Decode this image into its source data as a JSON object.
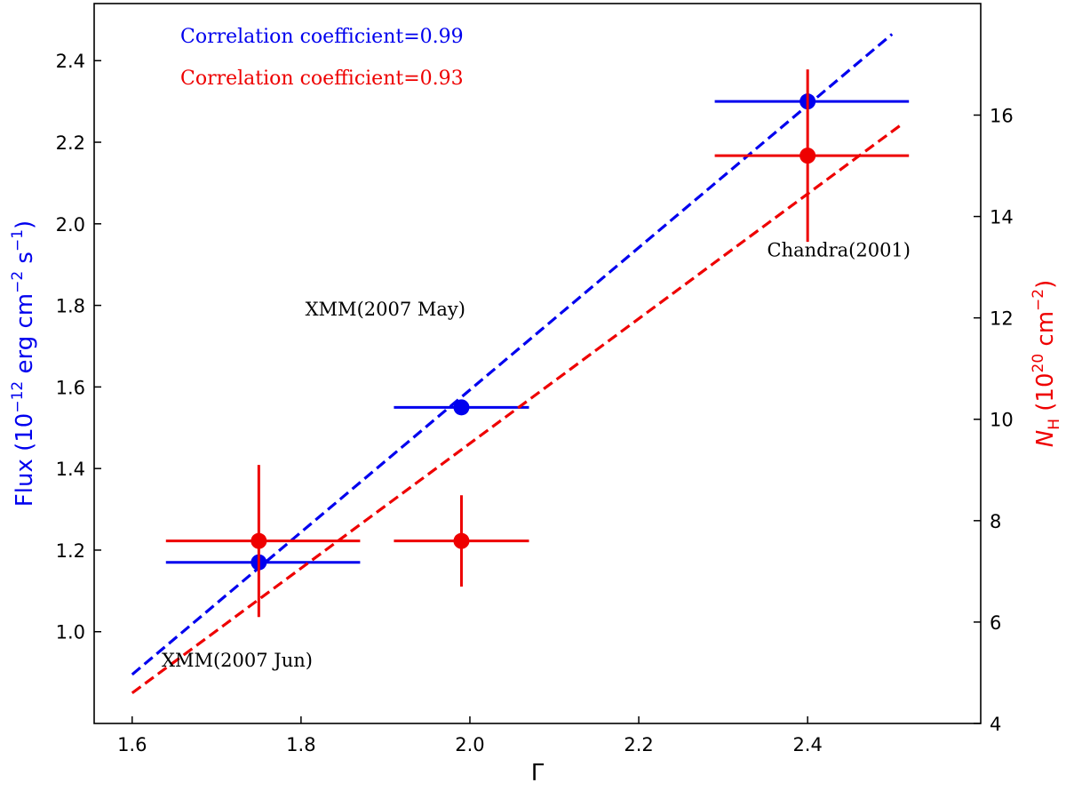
{
  "chart_data": {
    "type": "scatter",
    "xlabel": "Γ",
    "ylabel_left": {
      "prefix": "Flux (10",
      "exp1": "−12",
      "mid": " erg cm",
      "exp2": "−2",
      "mid2": " s",
      "exp3": "−1",
      "suffix": ")"
    },
    "ylabel_right": {
      "prefix": "N",
      "sub": "H",
      "mid": " (10",
      "exp1": "20",
      "mid2": " cm",
      "exp2": "−2",
      "suffix": ")"
    },
    "xlim": [
      1.555,
      2.605
    ],
    "ylim_left": [
      0.775,
      2.54
    ],
    "ylim_right": [
      4.0,
      18.2
    ],
    "x_ticks": [
      1.6,
      1.8,
      2.0,
      2.2,
      2.4
    ],
    "x_tick_labels": [
      "1.6",
      "1.8",
      "2.0",
      "2.2",
      "2.4"
    ],
    "y_left_ticks": [
      1.0,
      1.2,
      1.4,
      1.6,
      1.8,
      2.0,
      2.2,
      2.4
    ],
    "y_left_tick_labels": [
      "1.0",
      "1.2",
      "1.4",
      "1.6",
      "1.8",
      "2.0",
      "2.2",
      "2.4"
    ],
    "y_right_ticks": [
      4,
      6,
      8,
      10,
      12,
      14,
      16
    ],
    "y_right_tick_labels": [
      "4",
      "6",
      "8",
      "10",
      "12",
      "14",
      "16"
    ],
    "series": [
      {
        "name": "Flux",
        "axis": "left",
        "color": "#0000ee",
        "points": [
          {
            "x": 1.75,
            "y": 1.17,
            "xerr": [
              0.11,
              0.12
            ],
            "yerr": [
              0,
              0
            ]
          },
          {
            "x": 1.99,
            "y": 1.55,
            "xerr": [
              0.08,
              0.08
            ],
            "yerr": [
              0,
              0
            ]
          },
          {
            "x": 2.4,
            "y": 2.3,
            "xerr": [
              0.11,
              0.12
            ],
            "yerr": [
              0,
              0
            ]
          }
        ],
        "fit": {
          "x": [
            1.6,
            2.5
          ],
          "y": [
            0.895,
            2.465
          ]
        },
        "annotation": "Correlation coefficient=0.99"
      },
      {
        "name": "NH",
        "axis": "right",
        "color": "#ee0000",
        "points": [
          {
            "x": 1.75,
            "y": 7.6,
            "xerr": [
              0.11,
              0.12
            ],
            "yerr": [
              1.5,
              1.5
            ]
          },
          {
            "x": 1.99,
            "y": 7.6,
            "xerr": [
              0.08,
              0.08
            ],
            "yerr": [
              0.9,
              0.9
            ]
          },
          {
            "x": 2.4,
            "y": 15.2,
            "xerr": [
              0.11,
              0.12
            ],
            "yerr": [
              1.7,
              1.7
            ]
          }
        ],
        "fit": {
          "x": [
            1.6,
            2.51
          ],
          "y": [
            4.6,
            15.8
          ]
        },
        "annotation": "Correlation coefficient=0.93"
      }
    ],
    "labels": [
      {
        "text": "XMM(2007 Jun)",
        "x": 1.635,
        "y_left": 0.915
      },
      {
        "text": "XMM(2007 May)",
        "x": 1.805,
        "y_left": 1.775
      },
      {
        "text": "Chandra(2001)",
        "x": 2.352,
        "y_left": 1.92
      }
    ]
  }
}
